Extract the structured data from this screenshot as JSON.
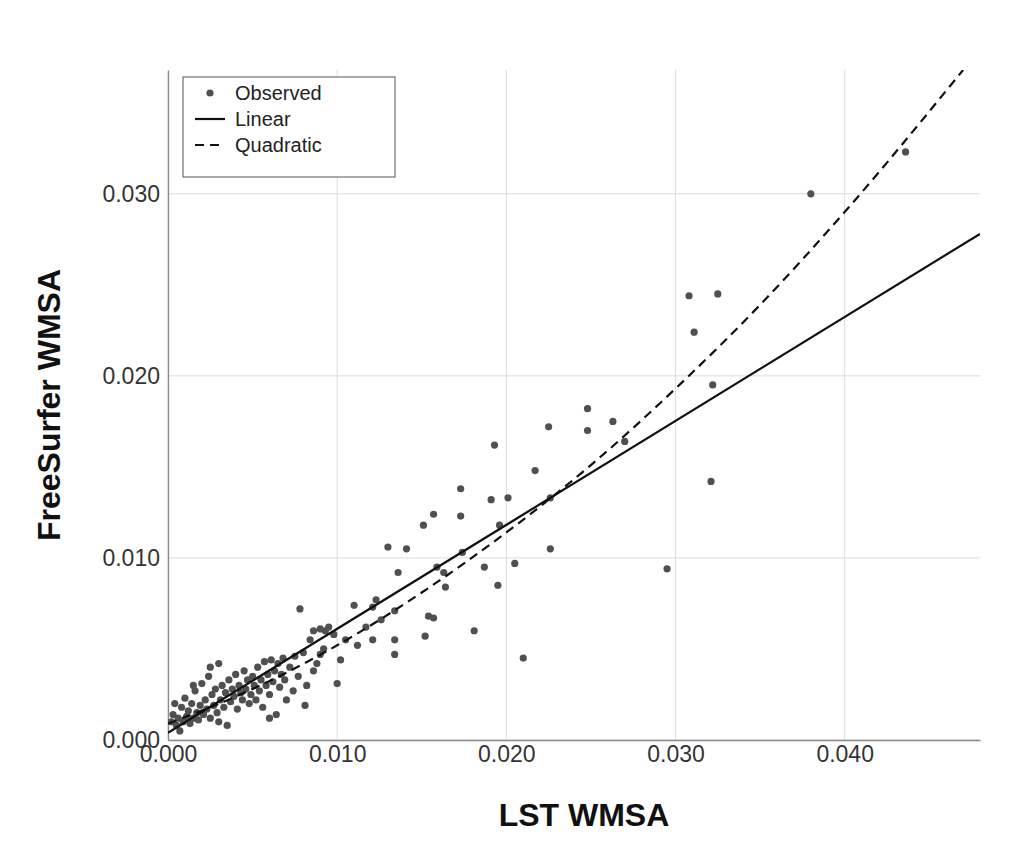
{
  "chart_data": {
    "type": "scatter",
    "x_label": "LST WMSA",
    "y_label": "FreeSurfer WMSA",
    "xlim": [
      0,
      0.048
    ],
    "ylim": [
      0,
      0.0368
    ],
    "xticks": [
      {
        "value": 0,
        "label": "0.000"
      },
      {
        "value": 0.01,
        "label": "0.010"
      },
      {
        "value": 0.02,
        "label": "0.020"
      },
      {
        "value": 0.03,
        "label": "0.030"
      },
      {
        "value": 0.04,
        "label": "0.040"
      }
    ],
    "yticks": [
      {
        "value": 0,
        "label": "0.000"
      },
      {
        "value": 0.01,
        "label": "0.010"
      },
      {
        "value": 0.02,
        "label": "0.020"
      },
      {
        "value": 0.03,
        "label": "0.030"
      }
    ],
    "grid": true,
    "legend": "top-left",
    "series": [
      {
        "name": "Observed",
        "type": "scatter",
        "marker": "circle",
        "color": "#505050",
        "x": [
          0.038,
          0.0436,
          0.0308,
          0.0325,
          0.0311,
          0.0322,
          0.0321,
          0.0295,
          0.0248,
          0.0248,
          0.0263,
          0.027,
          0.0225,
          0.0217,
          0.0193,
          0.0226,
          0.0226,
          0.021,
          0.0191,
          0.0201,
          0.0205,
          0.0195,
          0.0196,
          0.0181,
          0.0173,
          0.0173,
          0.0174,
          0.0187,
          0.0157,
          0.0151,
          0.0159,
          0.0163,
          0.0164,
          0.0154,
          0.0157,
          0.0152,
          0.013,
          0.0141,
          0.0136,
          0.0134,
          0.0134,
          0.0134,
          0.0126,
          0.0123,
          0.0121,
          0.011,
          0.0117,
          0.0121,
          0.0112,
          0.01,
          0.0102,
          0.0105,
          0.0078,
          0.0093,
          0.009,
          0.0086,
          0.0081,
          0.006,
          0.0002,
          0.0003,
          0.0005,
          0.0006,
          0.0008,
          0.0009,
          0.001,
          0.0011,
          0.0012,
          0.0013,
          0.0014,
          0.0015,
          0.0016,
          0.0017,
          0.0018,
          0.0019,
          0.002,
          0.0021,
          0.0022,
          0.0023,
          0.0024,
          0.0025,
          0.0026,
          0.0027,
          0.0028,
          0.0029,
          0.003,
          0.0031,
          0.0032,
          0.0033,
          0.0034,
          0.0035,
          0.0036,
          0.0037,
          0.0038,
          0.0039,
          0.004,
          0.0041,
          0.0042,
          0.0043,
          0.0044,
          0.0045,
          0.0046,
          0.0047,
          0.0048,
          0.0049,
          0.005,
          0.0051,
          0.0052,
          0.0053,
          0.0054,
          0.0055,
          0.0056,
          0.0057,
          0.0058,
          0.0059,
          0.006,
          0.0061,
          0.0062,
          0.0063,
          0.0064,
          0.0065,
          0.0066,
          0.0067,
          0.0068,
          0.0069,
          0.007,
          0.0072,
          0.0074,
          0.0075,
          0.0077,
          0.008,
          0.0082,
          0.0084,
          0.0086,
          0.0088,
          0.009,
          0.0092,
          0.0095,
          0.0098,
          0.0004,
          0.0007,
          0.0015,
          0.0025,
          0.003
        ],
        "values": [
          0.03,
          0.0323,
          0.0244,
          0.0245,
          0.0224,
          0.0195,
          0.0142,
          0.0094,
          0.0182,
          0.017,
          0.0175,
          0.0164,
          0.0172,
          0.0148,
          0.0162,
          0.0133,
          0.0105,
          0.0045,
          0.0132,
          0.0133,
          0.0097,
          0.0085,
          0.0118,
          0.006,
          0.0138,
          0.0123,
          0.0103,
          0.0095,
          0.0124,
          0.0118,
          0.0095,
          0.0092,
          0.0084,
          0.0068,
          0.0067,
          0.0057,
          0.0106,
          0.0105,
          0.0092,
          0.0071,
          0.0047,
          0.0055,
          0.0066,
          0.0077,
          0.0073,
          0.0074,
          0.0062,
          0.0055,
          0.0052,
          0.0031,
          0.0044,
          0.0055,
          0.0072,
          0.006,
          0.0047,
          0.0038,
          0.0019,
          0.0012,
          0.001,
          0.0014,
          0.0008,
          0.0012,
          0.0018,
          0.001,
          0.0023,
          0.0013,
          0.0016,
          0.0009,
          0.002,
          0.0012,
          0.0027,
          0.0015,
          0.0011,
          0.0019,
          0.0031,
          0.0014,
          0.0022,
          0.0017,
          0.0035,
          0.0012,
          0.0025,
          0.0019,
          0.0028,
          0.0015,
          0.0042,
          0.0022,
          0.003,
          0.0018,
          0.0026,
          0.0008,
          0.0033,
          0.0021,
          0.0028,
          0.0024,
          0.0036,
          0.0017,
          0.003,
          0.0026,
          0.0022,
          0.0038,
          0.0028,
          0.0033,
          0.002,
          0.0025,
          0.0035,
          0.003,
          0.0022,
          0.004,
          0.0027,
          0.0033,
          0.0018,
          0.0043,
          0.003,
          0.0036,
          0.0025,
          0.0044,
          0.0032,
          0.0038,
          0.0014,
          0.0042,
          0.0029,
          0.0036,
          0.0045,
          0.0033,
          0.0022,
          0.004,
          0.0027,
          0.0046,
          0.0035,
          0.0048,
          0.003,
          0.0055,
          0.006,
          0.0042,
          0.0061,
          0.005,
          0.0062,
          0.0058,
          0.002,
          0.0005,
          0.003,
          0.004,
          0.001
        ]
      },
      {
        "name": "Linear",
        "type": "line",
        "line_style": "solid",
        "color": "#111111",
        "x": [
          0,
          0.048
        ],
        "values": [
          0.0004,
          0.0278
        ]
      },
      {
        "name": "Quadratic",
        "type": "line",
        "line_style": "dashed",
        "color": "#111111",
        "x": [
          0,
          0.005,
          0.01,
          0.015,
          0.02,
          0.025,
          0.03,
          0.035,
          0.04,
          0.047
        ],
        "values": [
          0.0009,
          0.0028,
          0.0052,
          0.0081,
          0.0114,
          0.0151,
          0.0193,
          0.0239,
          0.029,
          0.0368
        ]
      }
    ]
  }
}
